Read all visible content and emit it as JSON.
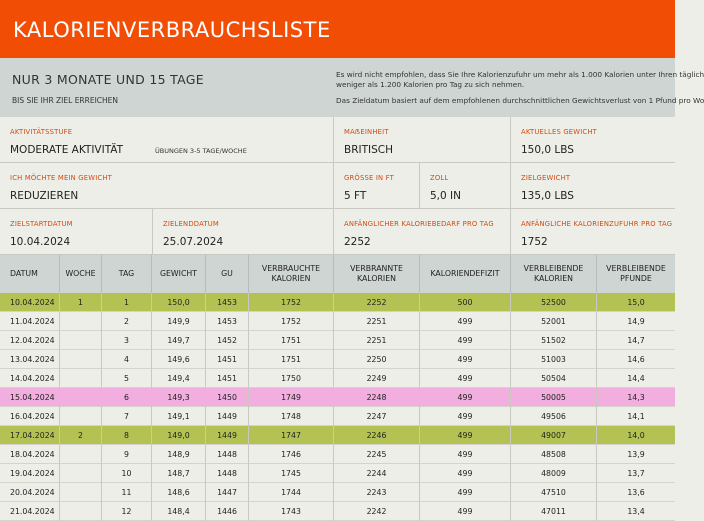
{
  "title": "KALORIENVERBRAUCHSLISTE",
  "summary": {
    "duration": "NUR 3 MONATE UND 15 TAGE",
    "subtext": "BIS SIE IHR ZIEL ERREICHEN",
    "note_line1": "Es wird nicht empfohlen, dass Sie Ihre Kalorienzufuhr um mehr als 1.000 Kalorien unter Ihren täglich",
    "note_line2": "weniger als 1.200 Kalorien pro Tag zu sich nehmen.",
    "note_line3": "Das Zieldatum basiert auf dem empfohlenen durchschnittlichen Gewichtsverlust von 1 Pfund pro Wo"
  },
  "form": {
    "activity_label": "AKTIVITÄTSSTUFE",
    "activity_value": "MODERATE AKTIVITÄT",
    "activity_detail": "ÜBUNGEN 3-5 TAGE/WOCHE",
    "unit_label": "MAẞEINHEIT",
    "unit_value": "BRITISCH",
    "current_weight_label": "AKTUELLES GEWICHT",
    "current_weight_value": "150,0 LBS",
    "goal_label": "ICH MÖCHTE MEIN GEWICHT",
    "goal_value": "REDUZIEREN",
    "height_ft_label": "GRÖSSE IN FT",
    "height_ft_value": "5 FT",
    "height_in_label": "ZOLL",
    "height_in_value": "5,0 IN",
    "target_weight_label": "ZIELGEWICHT",
    "target_weight_value": "135,0 LBS",
    "start_date_label": "ZIELSTARTDATUM",
    "start_date_value": "10.04.2024",
    "end_date_label": "ZIELENDDATUM",
    "end_date_value": "25.07.2024",
    "initial_need_label": "ANFÄNGLICHER KALORIEBEDARF PRO TAG",
    "initial_need_value": "2252",
    "initial_intake_label": "ANFÄNGLICHE KALORIENZUFUHR PRO TAG",
    "initial_intake_value": "1752"
  },
  "table": {
    "headers": [
      "DATUM",
      "WOCHE",
      "TAG",
      "GEWICHT",
      "GU",
      "VERBRAUCHTE\nKALORIEN",
      "VERBRANNTE\nKALORIEN",
      "KALORIENDEFIZIT",
      "VERBLEIBENDE\nKALORIEN",
      "VERBLEIBENDE\nPFUNDE"
    ],
    "rows": [
      {
        "hl": "green",
        "cells": [
          "10.04.2024",
          "1",
          "1",
          "150,0",
          "1453",
          "1752",
          "2252",
          "500",
          "52500",
          "15,0"
        ]
      },
      {
        "hl": "",
        "cells": [
          "11.04.2024",
          "",
          "2",
          "149,9",
          "1453",
          "1752",
          "2251",
          "499",
          "52001",
          "14,9"
        ]
      },
      {
        "hl": "",
        "cells": [
          "12.04.2024",
          "",
          "3",
          "149,7",
          "1452",
          "1751",
          "2251",
          "499",
          "51502",
          "14,7"
        ]
      },
      {
        "hl": "",
        "cells": [
          "13.04.2024",
          "",
          "4",
          "149,6",
          "1451",
          "1751",
          "2250",
          "499",
          "51003",
          "14,6"
        ]
      },
      {
        "hl": "",
        "cells": [
          "14.04.2024",
          "",
          "5",
          "149,4",
          "1451",
          "1750",
          "2249",
          "499",
          "50504",
          "14,4"
        ]
      },
      {
        "hl": "pink",
        "cells": [
          "15.04.2024",
          "",
          "6",
          "149,3",
          "1450",
          "1749",
          "2248",
          "499",
          "50005",
          "14,3"
        ]
      },
      {
        "hl": "",
        "cells": [
          "16.04.2024",
          "",
          "7",
          "149,1",
          "1449",
          "1748",
          "2247",
          "499",
          "49506",
          "14,1"
        ]
      },
      {
        "hl": "green",
        "cells": [
          "17.04.2024",
          "2",
          "8",
          "149,0",
          "1449",
          "1747",
          "2246",
          "499",
          "49007",
          "14,0"
        ]
      },
      {
        "hl": "",
        "cells": [
          "18.04.2024",
          "",
          "9",
          "148,9",
          "1448",
          "1746",
          "2245",
          "499",
          "48508",
          "13,9"
        ]
      },
      {
        "hl": "",
        "cells": [
          "19.04.2024",
          "",
          "10",
          "148,7",
          "1448",
          "1745",
          "2244",
          "499",
          "48009",
          "13,7"
        ]
      },
      {
        "hl": "",
        "cells": [
          "20.04.2024",
          "",
          "11",
          "148,6",
          "1447",
          "1744",
          "2243",
          "499",
          "47510",
          "13,6"
        ]
      },
      {
        "hl": "",
        "cells": [
          "21.04.2024",
          "",
          "12",
          "148,4",
          "1446",
          "1743",
          "2242",
          "499",
          "47011",
          "13,4"
        ]
      }
    ]
  },
  "colors": {
    "banner": "#f24d05",
    "label_accent": "#d24a0d",
    "week_highlight": "#b4c253",
    "reference_highlight": "#f1aede",
    "header_band": "#cfd5d3"
  }
}
